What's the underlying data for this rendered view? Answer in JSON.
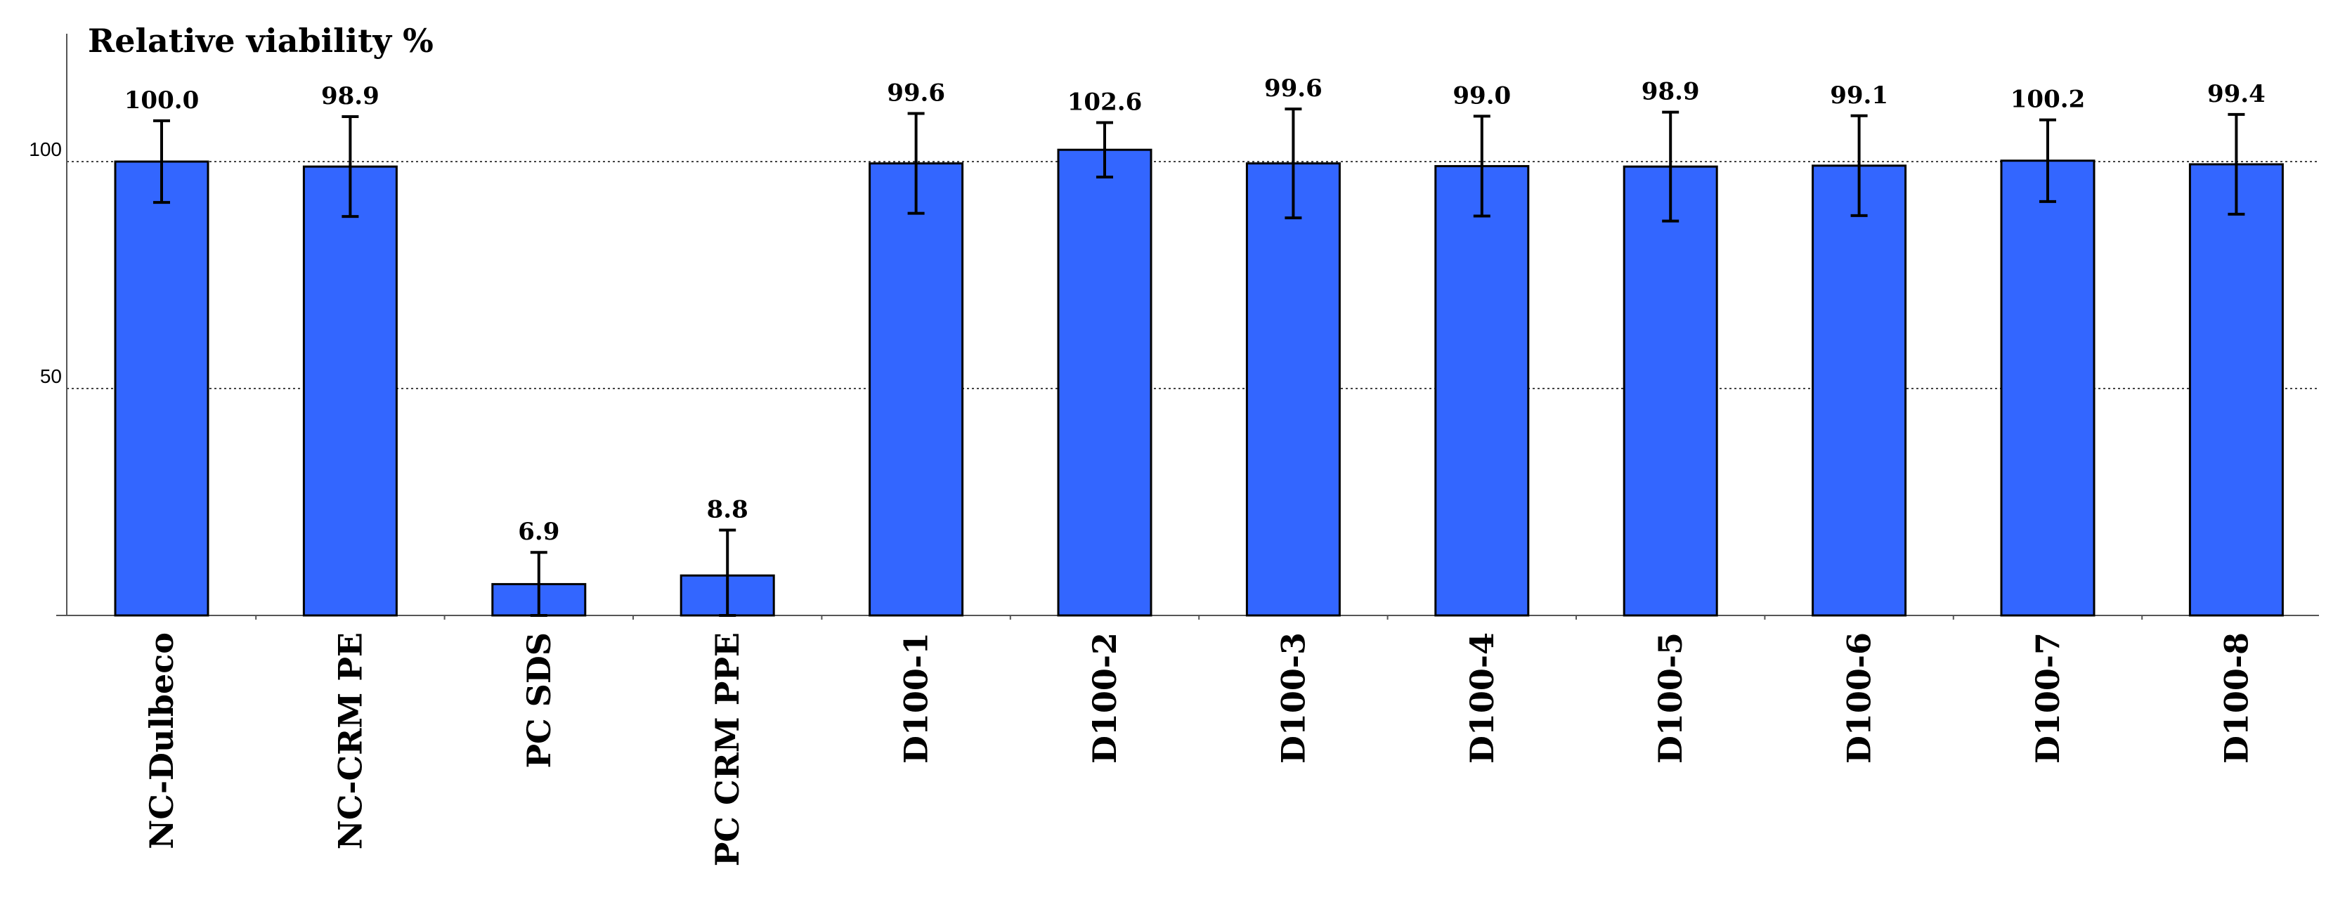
{
  "chart_data": {
    "type": "bar",
    "title": "Relative viability %",
    "categories": [
      "NC-Dulbeco",
      "NC-CRM PE",
      "PC SDS",
      "PC CRM PPE",
      "D100-1",
      "D100-2",
      "D100-3",
      "D100-4",
      "D100-5",
      "D100-6",
      "D100-7",
      "D100-8"
    ],
    "values": [
      100.0,
      98.9,
      6.9,
      8.8,
      99.6,
      102.6,
      99.6,
      99.0,
      98.9,
      99.1,
      100.2,
      99.4
    ],
    "value_labels": [
      "100.0",
      "98.9",
      "6.9",
      "8.8",
      "99.6",
      "102.6",
      "99.6",
      "99.0",
      "98.9",
      "99.1",
      "100.2",
      "99.4"
    ],
    "error": [
      9,
      11,
      7,
      10,
      11,
      6,
      12,
      11,
      12,
      11,
      9,
      11
    ],
    "yticks": [
      50,
      100
    ],
    "ytick_labels": [
      "50",
      "100"
    ],
    "ylim": [
      0,
      130
    ],
    "grid": "horizontal dotted at 50 and 100",
    "bar_color": "#3366ff",
    "bar_edge_color": "#000000"
  }
}
